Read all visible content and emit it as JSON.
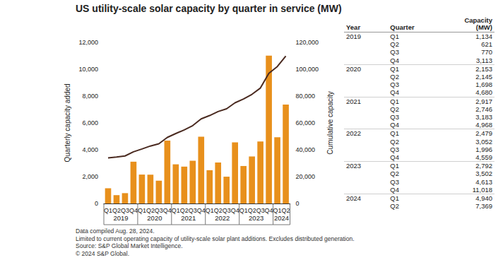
{
  "chart_data": {
    "type": "bar",
    "title": "US utility-scale solar capacity by quarter in service (MW)",
    "categories": [
      "Q1",
      "Q2",
      "Q3",
      "Q4",
      "Q1",
      "Q2",
      "Q3",
      "Q4",
      "Q1",
      "Q2",
      "Q3",
      "Q4",
      "Q1",
      "Q2",
      "Q3",
      "Q4",
      "Q1",
      "Q2",
      "Q3",
      "Q4",
      "Q1",
      "Q2"
    ],
    "years": [
      "2019",
      "2019",
      "2019",
      "2019",
      "2020",
      "2020",
      "2020",
      "2020",
      "2021",
      "2021",
      "2021",
      "2021",
      "2022",
      "2022",
      "2022",
      "2022",
      "2023",
      "2023",
      "2023",
      "2023",
      "2024",
      "2024"
    ],
    "series": [
      {
        "type": "bar",
        "color": "#e8901c",
        "values": [
          1134,
          621,
          770,
          3113,
          2153,
          2145,
          1698,
          4680,
          2917,
          2746,
          3183,
          4968,
          2479,
          3052,
          1996,
          4559,
          2792,
          3502,
          4613,
          11018,
          4940,
          7369
        ]
      },
      {
        "type": "line",
        "axis": "y2",
        "color": "#4a2a20",
        "values": [
          34000,
          34600,
          35400,
          38500,
          40600,
          42800,
          44500,
          49200,
          52100,
          54800,
          58000,
          63000,
          65500,
          68500,
          70500,
          75000,
          77800,
          81300,
          86000,
          97000,
          102000,
          109800
        ]
      }
    ],
    "y_label": "Quarterly capacity added",
    "y2_label": "Cumulative capacity",
    "ylim": [
      0,
      12000
    ],
    "yticks": [
      0,
      {
        "value": 2000,
        "label": "2,000"
      },
      {
        "value": 4000,
        "label": "4,000"
      },
      {
        "value": 6000,
        "label": "6,000"
      },
      {
        "value": 8000,
        "label": "8,000"
      },
      {
        "value": 10000,
        "label": "10,000"
      },
      {
        "value": 12000,
        "label": "12,000"
      }
    ],
    "y2lim": [
      0,
      120000
    ],
    "y2ticks": [
      0,
      {
        "value": 20000,
        "label": "20,000"
      },
      {
        "value": 40000,
        "label": "40,000"
      },
      {
        "value": 60000,
        "label": "60,000"
      },
      {
        "value": 80000,
        "label": "80,000"
      },
      {
        "value": 100000,
        "label": "100,000"
      },
      {
        "value": 120000,
        "label": "120,000"
      }
    ],
    "grid": false
  },
  "table": {
    "headers": [
      "Year",
      "Quarter",
      "Capacity (MW)"
    ],
    "rows": [
      [
        "2019",
        "Q1",
        "1,134"
      ],
      [
        null,
        "Q2",
        "621"
      ],
      [
        null,
        "Q3",
        "770"
      ],
      [
        null,
        "Q4",
        "3,113"
      ],
      [
        "2020",
        "Q1",
        "2,153"
      ],
      [
        null,
        "Q2",
        "2,145"
      ],
      [
        null,
        "Q3",
        "1,698"
      ],
      [
        null,
        "Q4",
        "4,680"
      ],
      [
        "2021",
        "Q1",
        "2,917"
      ],
      [
        null,
        "Q2",
        "2,746"
      ],
      [
        null,
        "Q3",
        "3,183"
      ],
      [
        null,
        "Q4",
        "4,968"
      ],
      [
        "2022",
        "Q1",
        "2,479"
      ],
      [
        null,
        "Q2",
        "3,052"
      ],
      [
        null,
        "Q3",
        "1,996"
      ],
      [
        null,
        "Q4",
        "4,559"
      ],
      [
        "2023",
        "Q1",
        "2,792"
      ],
      [
        null,
        "Q2",
        "3,502"
      ],
      [
        null,
        "Q3",
        "4,613"
      ],
      [
        null,
        "Q4",
        "11,018"
      ],
      [
        "2024",
        "Q1",
        "4,940"
      ],
      [
        null,
        "Q2",
        "7,369"
      ]
    ]
  },
  "notes": [
    "Data compiled Aug. 28, 2024.",
    "Limited to current operating capacity of utility-scale solar plant additions. Excludes distributed generation.",
    "Source: S&P Global Market Intelligence.",
    "© 2024 S&P Global."
  ]
}
